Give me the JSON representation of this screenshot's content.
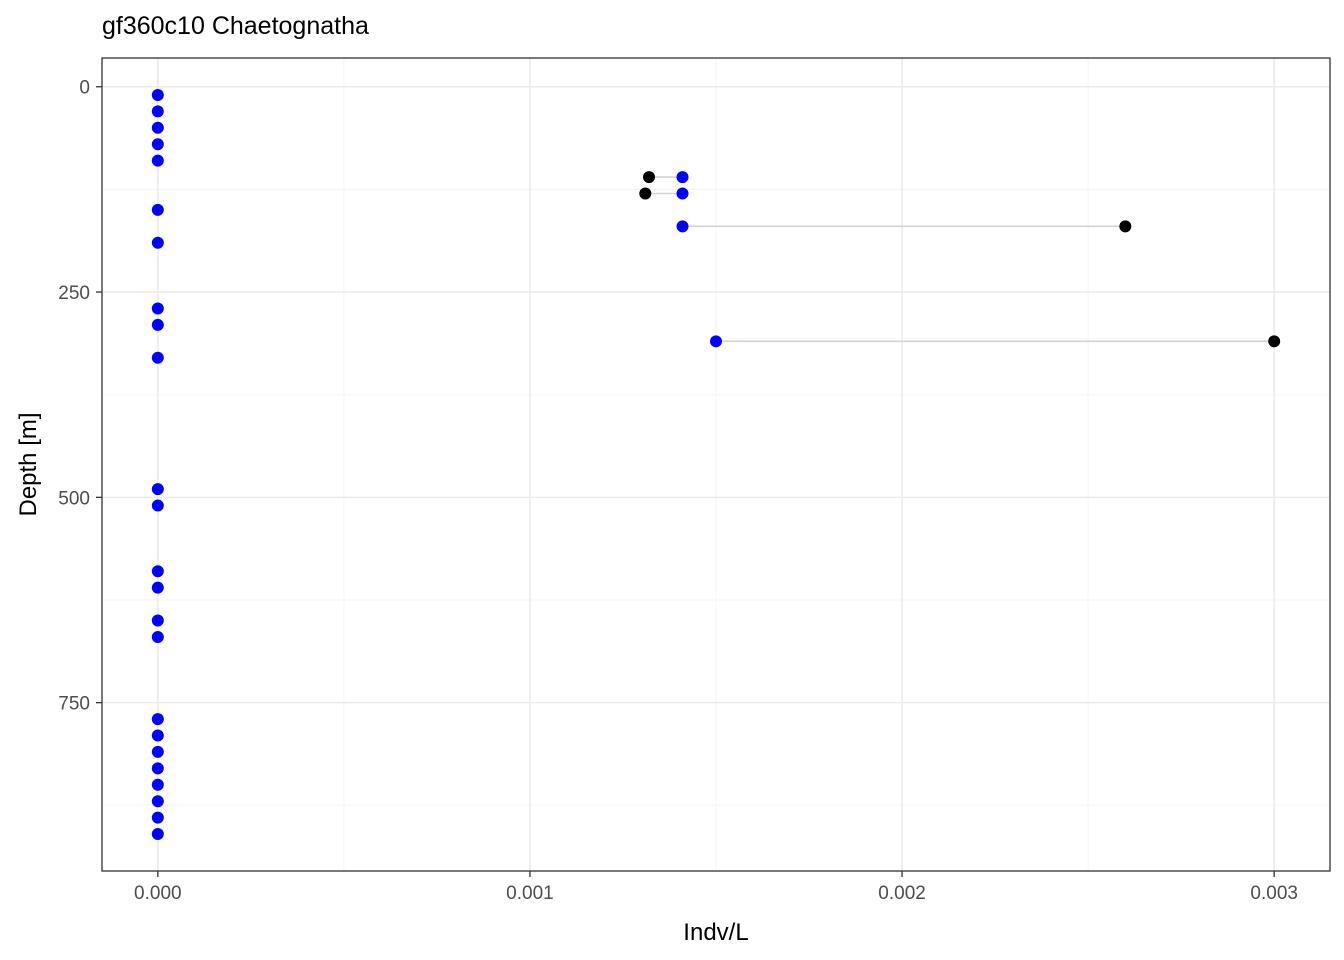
{
  "chart_data": {
    "type": "scatter",
    "title": "gf360c10 Chaetognatha",
    "xlabel": "Indv/L",
    "ylabel": "Depth [m]",
    "xlim": [
      -0.00015,
      0.00315
    ],
    "ylim": [
      -35,
      955
    ],
    "y_reversed": true,
    "x_ticks": [
      0,
      0.001,
      0.002,
      0.003
    ],
    "x_tick_labels": [
      "0.000",
      "0.001",
      "0.002",
      "0.003"
    ],
    "y_ticks": [
      0,
      250,
      500,
      750
    ],
    "y_tick_labels": [
      "0",
      "250",
      "500",
      "750"
    ],
    "grid": true,
    "legend": "none",
    "colors": {
      "blue": "#0000ff",
      "black": "#000000",
      "segment": "#d3d3d3",
      "grid_major": "#ebebeb",
      "grid_minor": "#f5f5f5"
    },
    "series": [
      {
        "color": "#0000ff",
        "points": [
          [
            0,
            10
          ],
          [
            0,
            30
          ],
          [
            0,
            50
          ],
          [
            0,
            70
          ],
          [
            0,
            90
          ],
          [
            0,
            150
          ],
          [
            0,
            190
          ],
          [
            0,
            270
          ],
          [
            0,
            290
          ],
          [
            0,
            330
          ],
          [
            0,
            490
          ],
          [
            0,
            510
          ],
          [
            0,
            590
          ],
          [
            0,
            610
          ],
          [
            0,
            650
          ],
          [
            0,
            670
          ],
          [
            0,
            770
          ],
          [
            0,
            790
          ],
          [
            0,
            810
          ],
          [
            0,
            830
          ],
          [
            0,
            850
          ],
          [
            0,
            870
          ],
          [
            0,
            890
          ],
          [
            0,
            910
          ],
          [
            0.00141,
            110
          ],
          [
            0.00141,
            130
          ],
          [
            0.00141,
            170
          ],
          [
            0.0015,
            310
          ]
        ]
      },
      {
        "color": "#000000",
        "points": [
          [
            0.00132,
            110
          ],
          [
            0.00131,
            130
          ],
          [
            0.0026,
            170
          ],
          [
            0.003,
            310
          ]
        ]
      }
    ],
    "segments": [
      [
        0.00132,
        0.00141,
        110
      ],
      [
        0.00131,
        0.00141,
        130
      ],
      [
        0.00141,
        0.0026,
        170
      ],
      [
        0.0015,
        0.003,
        310
      ]
    ]
  }
}
